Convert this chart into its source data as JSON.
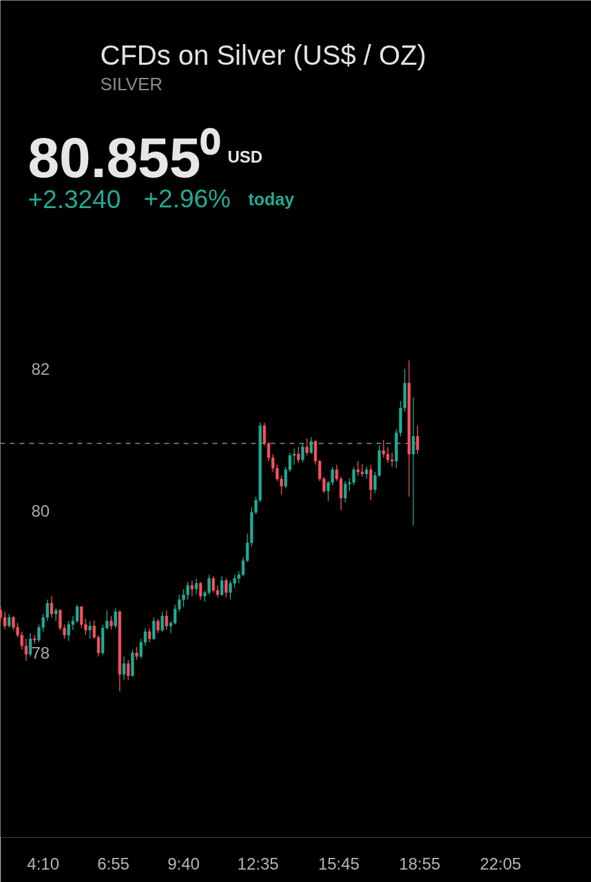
{
  "chart_data": {
    "type": "candlestick",
    "title": "CFDs on Silver (US$ / OZ)",
    "subtitle": "SILVER",
    "annotations": [
      "80.855⁰",
      "USD",
      "+2.3240",
      "+2.96%",
      "today"
    ],
    "x": [
      2.5,
      2.6667,
      2.8333,
      3,
      3.1667,
      3.3333,
      3.5,
      3.6667,
      3.8333,
      4,
      4.1667,
      4.3333,
      4.5,
      4.6667,
      4.8333,
      5,
      5.1667,
      5.3333,
      5.5,
      5.6667,
      5.8333,
      6,
      6.1667,
      6.3333,
      6.5,
      6.6667,
      6.8333,
      7,
      7.1667,
      7.3333,
      7.5,
      7.6667,
      7.8333,
      8,
      8.1667,
      8.3333,
      8.5,
      8.6667,
      8.8333,
      9,
      9.1667,
      9.3333,
      9.5,
      9.6667,
      9.8333,
      10,
      10.1667,
      10.3333,
      10.5,
      10.6667,
      10.8333,
      11,
      11.1667,
      11.3333,
      11.5,
      11.6667,
      11.8333,
      12,
      12.1667,
      12.3333,
      12.5,
      12.6667,
      12.8333,
      13,
      13.1667,
      13.3333,
      13.5,
      13.6667,
      13.8333,
      14,
      14.1667,
      14.3333,
      14.5,
      14.6667,
      14.8333,
      15,
      15.1667,
      15.3333,
      15.5,
      15.6667,
      15.8333,
      16,
      16.1667,
      16.3333,
      16.5,
      16.6667,
      16.8333,
      17,
      17.1667,
      17.3333,
      17.5,
      17.6667,
      17.8333,
      18,
      18.1667,
      18.3333,
      18.5,
      18.6667,
      18.8333
    ],
    "ohlc": [
      [
        78.6,
        78.66,
        78.45,
        78.5
      ],
      [
        78.5,
        78.58,
        78.33,
        78.38
      ],
      [
        78.38,
        78.55,
        78.36,
        78.5
      ],
      [
        78.5,
        78.52,
        78.32,
        78.36
      ],
      [
        78.36,
        78.42,
        78.22,
        78.25
      ],
      [
        78.25,
        78.3,
        78.05,
        78.1
      ],
      [
        78.1,
        78.2,
        77.89,
        77.98
      ],
      [
        77.98,
        78.28,
        77.95,
        78.2
      ],
      [
        78.2,
        78.25,
        78.13,
        78.18
      ],
      [
        78.18,
        78.4,
        78.15,
        78.36
      ],
      [
        78.36,
        78.55,
        78.3,
        78.5
      ],
      [
        78.5,
        78.75,
        78.45,
        78.7
      ],
      [
        78.7,
        78.8,
        78.5,
        78.55
      ],
      [
        78.55,
        78.63,
        78.45,
        78.6
      ],
      [
        78.6,
        78.62,
        78.32,
        78.35
      ],
      [
        78.35,
        78.4,
        78.2,
        78.25
      ],
      [
        78.25,
        78.45,
        78.17,
        78.4
      ],
      [
        78.4,
        78.52,
        78.32,
        78.45
      ],
      [
        78.45,
        78.68,
        78.42,
        78.65
      ],
      [
        78.65,
        78.66,
        78.35,
        78.4
      ],
      [
        78.4,
        78.48,
        78.25,
        78.32
      ],
      [
        78.32,
        78.45,
        78.2,
        78.38
      ],
      [
        78.38,
        78.46,
        78.2,
        78.22
      ],
      [
        78.22,
        78.25,
        77.95,
        78.0
      ],
      [
        78.0,
        78.4,
        77.97,
        78.35
      ],
      [
        78.35,
        78.6,
        78.33,
        78.45
      ],
      [
        78.45,
        78.52,
        78.33,
        78.38
      ],
      [
        78.38,
        78.63,
        78.35,
        78.58
      ],
      [
        78.58,
        78.6,
        77.46,
        77.7
      ],
      [
        77.7,
        77.95,
        77.62,
        77.85
      ],
      [
        77.85,
        77.9,
        77.62,
        77.68
      ],
      [
        77.68,
        78.05,
        77.66,
        78.0
      ],
      [
        78.0,
        78.08,
        77.9,
        77.95
      ],
      [
        77.95,
        78.2,
        77.92,
        78.15
      ],
      [
        78.15,
        78.35,
        78.1,
        78.3
      ],
      [
        78.3,
        78.35,
        78.15,
        78.2
      ],
      [
        78.2,
        78.5,
        78.18,
        78.45
      ],
      [
        78.45,
        78.48,
        78.28,
        78.32
      ],
      [
        78.32,
        78.58,
        78.3,
        78.52
      ],
      [
        78.52,
        78.6,
        78.33,
        78.38
      ],
      [
        78.38,
        78.45,
        78.28,
        78.42
      ],
      [
        78.42,
        78.68,
        78.4,
        78.62
      ],
      [
        78.62,
        78.82,
        78.58,
        78.75
      ],
      [
        78.75,
        78.9,
        78.65,
        78.82
      ],
      [
        78.82,
        79.0,
        78.75,
        78.95
      ],
      [
        78.95,
        79.02,
        78.8,
        78.9
      ],
      [
        78.9,
        79.05,
        78.82,
        78.98
      ],
      [
        78.98,
        79.0,
        78.75,
        78.8
      ],
      [
        78.8,
        78.88,
        78.72,
        78.85
      ],
      [
        78.85,
        79.1,
        78.82,
        79.05
      ],
      [
        79.05,
        79.08,
        78.85,
        78.88
      ],
      [
        78.88,
        78.95,
        78.78,
        78.82
      ],
      [
        78.82,
        79.08,
        78.8,
        79.02
      ],
      [
        79.02,
        79.05,
        78.78,
        78.85
      ],
      [
        78.85,
        79.02,
        78.75,
        78.98
      ],
      [
        78.98,
        79.1,
        78.92,
        79.05
      ],
      [
        79.05,
        79.15,
        78.98,
        79.1
      ],
      [
        79.1,
        79.35,
        79.08,
        79.3
      ],
      [
        79.3,
        79.68,
        79.28,
        79.55
      ],
      [
        79.55,
        80.05,
        79.5,
        79.98
      ],
      [
        79.98,
        80.2,
        79.95,
        80.15
      ],
      [
        80.15,
        81.25,
        80.12,
        81.2
      ],
      [
        81.2,
        81.24,
        80.92,
        80.95
      ],
      [
        80.95,
        80.97,
        80.7,
        80.75
      ],
      [
        80.75,
        80.8,
        80.55,
        80.6
      ],
      [
        80.6,
        80.65,
        80.42,
        80.45
      ],
      [
        80.45,
        80.5,
        80.23,
        80.35
      ],
      [
        80.35,
        80.62,
        80.32,
        80.58
      ],
      [
        80.58,
        80.82,
        80.55,
        80.78
      ],
      [
        80.78,
        80.88,
        80.65,
        80.8
      ],
      [
        80.8,
        80.9,
        80.68,
        80.72
      ],
      [
        80.72,
        80.95,
        80.68,
        80.9
      ],
      [
        80.9,
        81.02,
        80.78,
        80.82
      ],
      [
        80.82,
        81.04,
        80.8,
        80.98
      ],
      [
        80.98,
        81.0,
        80.65,
        80.7
      ],
      [
        80.7,
        80.72,
        80.42,
        80.45
      ],
      [
        80.45,
        80.48,
        80.25,
        80.28
      ],
      [
        80.28,
        80.42,
        80.14,
        80.4
      ],
      [
        80.4,
        80.62,
        80.36,
        80.58
      ],
      [
        80.58,
        80.65,
        80.42,
        80.45
      ],
      [
        80.45,
        80.48,
        80.01,
        80.18
      ],
      [
        80.18,
        80.42,
        80.12,
        80.38
      ],
      [
        80.38,
        80.46,
        80.28,
        80.4
      ],
      [
        80.4,
        80.62,
        80.36,
        80.58
      ],
      [
        80.58,
        80.7,
        80.5,
        80.55
      ],
      [
        80.55,
        80.66,
        80.48,
        80.52
      ],
      [
        80.52,
        80.62,
        80.45,
        80.58
      ],
      [
        80.58,
        80.65,
        80.15,
        80.3
      ],
      [
        80.3,
        80.55,
        80.25,
        80.5
      ],
      [
        80.5,
        80.92,
        80.48,
        80.85
      ],
      [
        80.85,
        81.0,
        80.75,
        80.8
      ],
      [
        80.8,
        80.9,
        80.68,
        80.72
      ],
      [
        80.72,
        80.82,
        80.62,
        80.7
      ],
      [
        80.7,
        81.15,
        80.6,
        81.1
      ],
      [
        81.1,
        81.55,
        81.05,
        81.45
      ],
      [
        81.45,
        82.0,
        81.4,
        81.8
      ],
      [
        81.8,
        82.12,
        80.2,
        80.8
      ],
      [
        80.8,
        81.6,
        79.79,
        81.05
      ],
      [
        81.05,
        81.2,
        80.8,
        80.86
      ]
    ],
    "colors": [
      "#f7525f",
      "#f7525f",
      "#22ab94",
      "#f7525f",
      "#f7525f",
      "#f7525f",
      "#f7525f",
      "#22ab94",
      "#f7525f",
      "#22ab94",
      "#22ab94",
      "#22ab94",
      "#f7525f",
      "#22ab94",
      "#f7525f",
      "#f7525f",
      "#22ab94",
      "#22ab94",
      "#22ab94",
      "#f7525f",
      "#f7525f",
      "#22ab94",
      "#f7525f",
      "#f7525f",
      "#22ab94",
      "#22ab94",
      "#f7525f",
      "#22ab94",
      "#f7525f",
      "#22ab94",
      "#f7525f",
      "#22ab94",
      "#f7525f",
      "#22ab94",
      "#22ab94",
      "#f7525f",
      "#22ab94",
      "#f7525f",
      "#22ab94",
      "#f7525f",
      "#22ab94",
      "#22ab94",
      "#22ab94",
      "#22ab94",
      "#22ab94",
      "#f7525f",
      "#22ab94",
      "#f7525f",
      "#22ab94",
      "#22ab94",
      "#f7525f",
      "#f7525f",
      "#22ab94",
      "#f7525f",
      "#22ab94",
      "#22ab94",
      "#22ab94",
      "#22ab94",
      "#22ab94",
      "#22ab94",
      "#22ab94",
      "#22ab94",
      "#f7525f",
      "#f7525f",
      "#f7525f",
      "#f7525f",
      "#f7525f",
      "#22ab94",
      "#22ab94",
      "#22ab94",
      "#f7525f",
      "#22ab94",
      "#f7525f",
      "#22ab94",
      "#f7525f",
      "#f7525f",
      "#f7525f",
      "#22ab94",
      "#22ab94",
      "#f7525f",
      "#f7525f",
      "#22ab94",
      "#22ab94",
      "#22ab94",
      "#f7525f",
      "#f7525f",
      "#22ab94",
      "#f7525f",
      "#22ab94",
      "#22ab94",
      "#f7525f",
      "#f7525f",
      "#f7525f",
      "#22ab94",
      "#22ab94",
      "#22ab94",
      "#f7525f",
      "#22ab94",
      "#f7525f"
    ],
    "xlim": [
      2.49,
      25.64
    ],
    "ylim": [
      75.4,
      87.19
    ],
    "xticks": [
      {
        "value": 4.1667,
        "label": "4:10"
      },
      {
        "value": 6.9167,
        "label": "6:55"
      },
      {
        "value": 9.6667,
        "label": "9:40"
      },
      {
        "value": 12.5833,
        "label": "12:35"
      },
      {
        "value": 15.75,
        "label": "15:45"
      },
      {
        "value": 18.9167,
        "label": "18:55"
      },
      {
        "value": 22.0833,
        "label": "22:05"
      }
    ],
    "yticks": [
      78,
      80,
      82
    ],
    "ref_lines": [
      {
        "axis": "y",
        "value": 80.95,
        "color": "#8c8c8c",
        "line_style": "dashed"
      }
    ]
  }
}
